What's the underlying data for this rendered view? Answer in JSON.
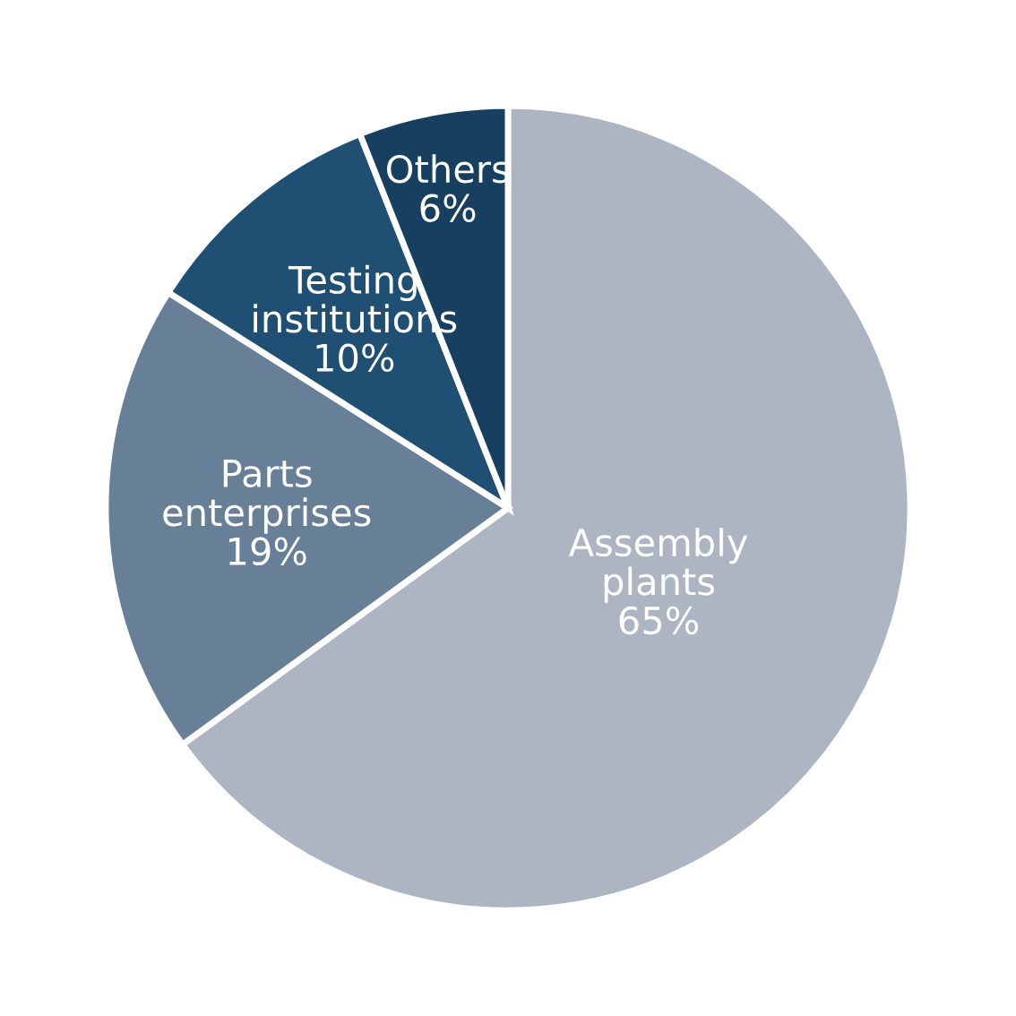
{
  "chart_data": {
    "type": "pie",
    "categories": [
      "Assembly\nplants",
      "Parts\nenterprises",
      "Testing\ninstitutions",
      "Others"
    ],
    "values": [
      65,
      19,
      10,
      6
    ],
    "value_labels": [
      "65%",
      "19%",
      "10%",
      "6%"
    ],
    "colors": [
      "#adb5c2",
      "#687f98",
      "#1f4f72",
      "#173f5f"
    ]
  }
}
